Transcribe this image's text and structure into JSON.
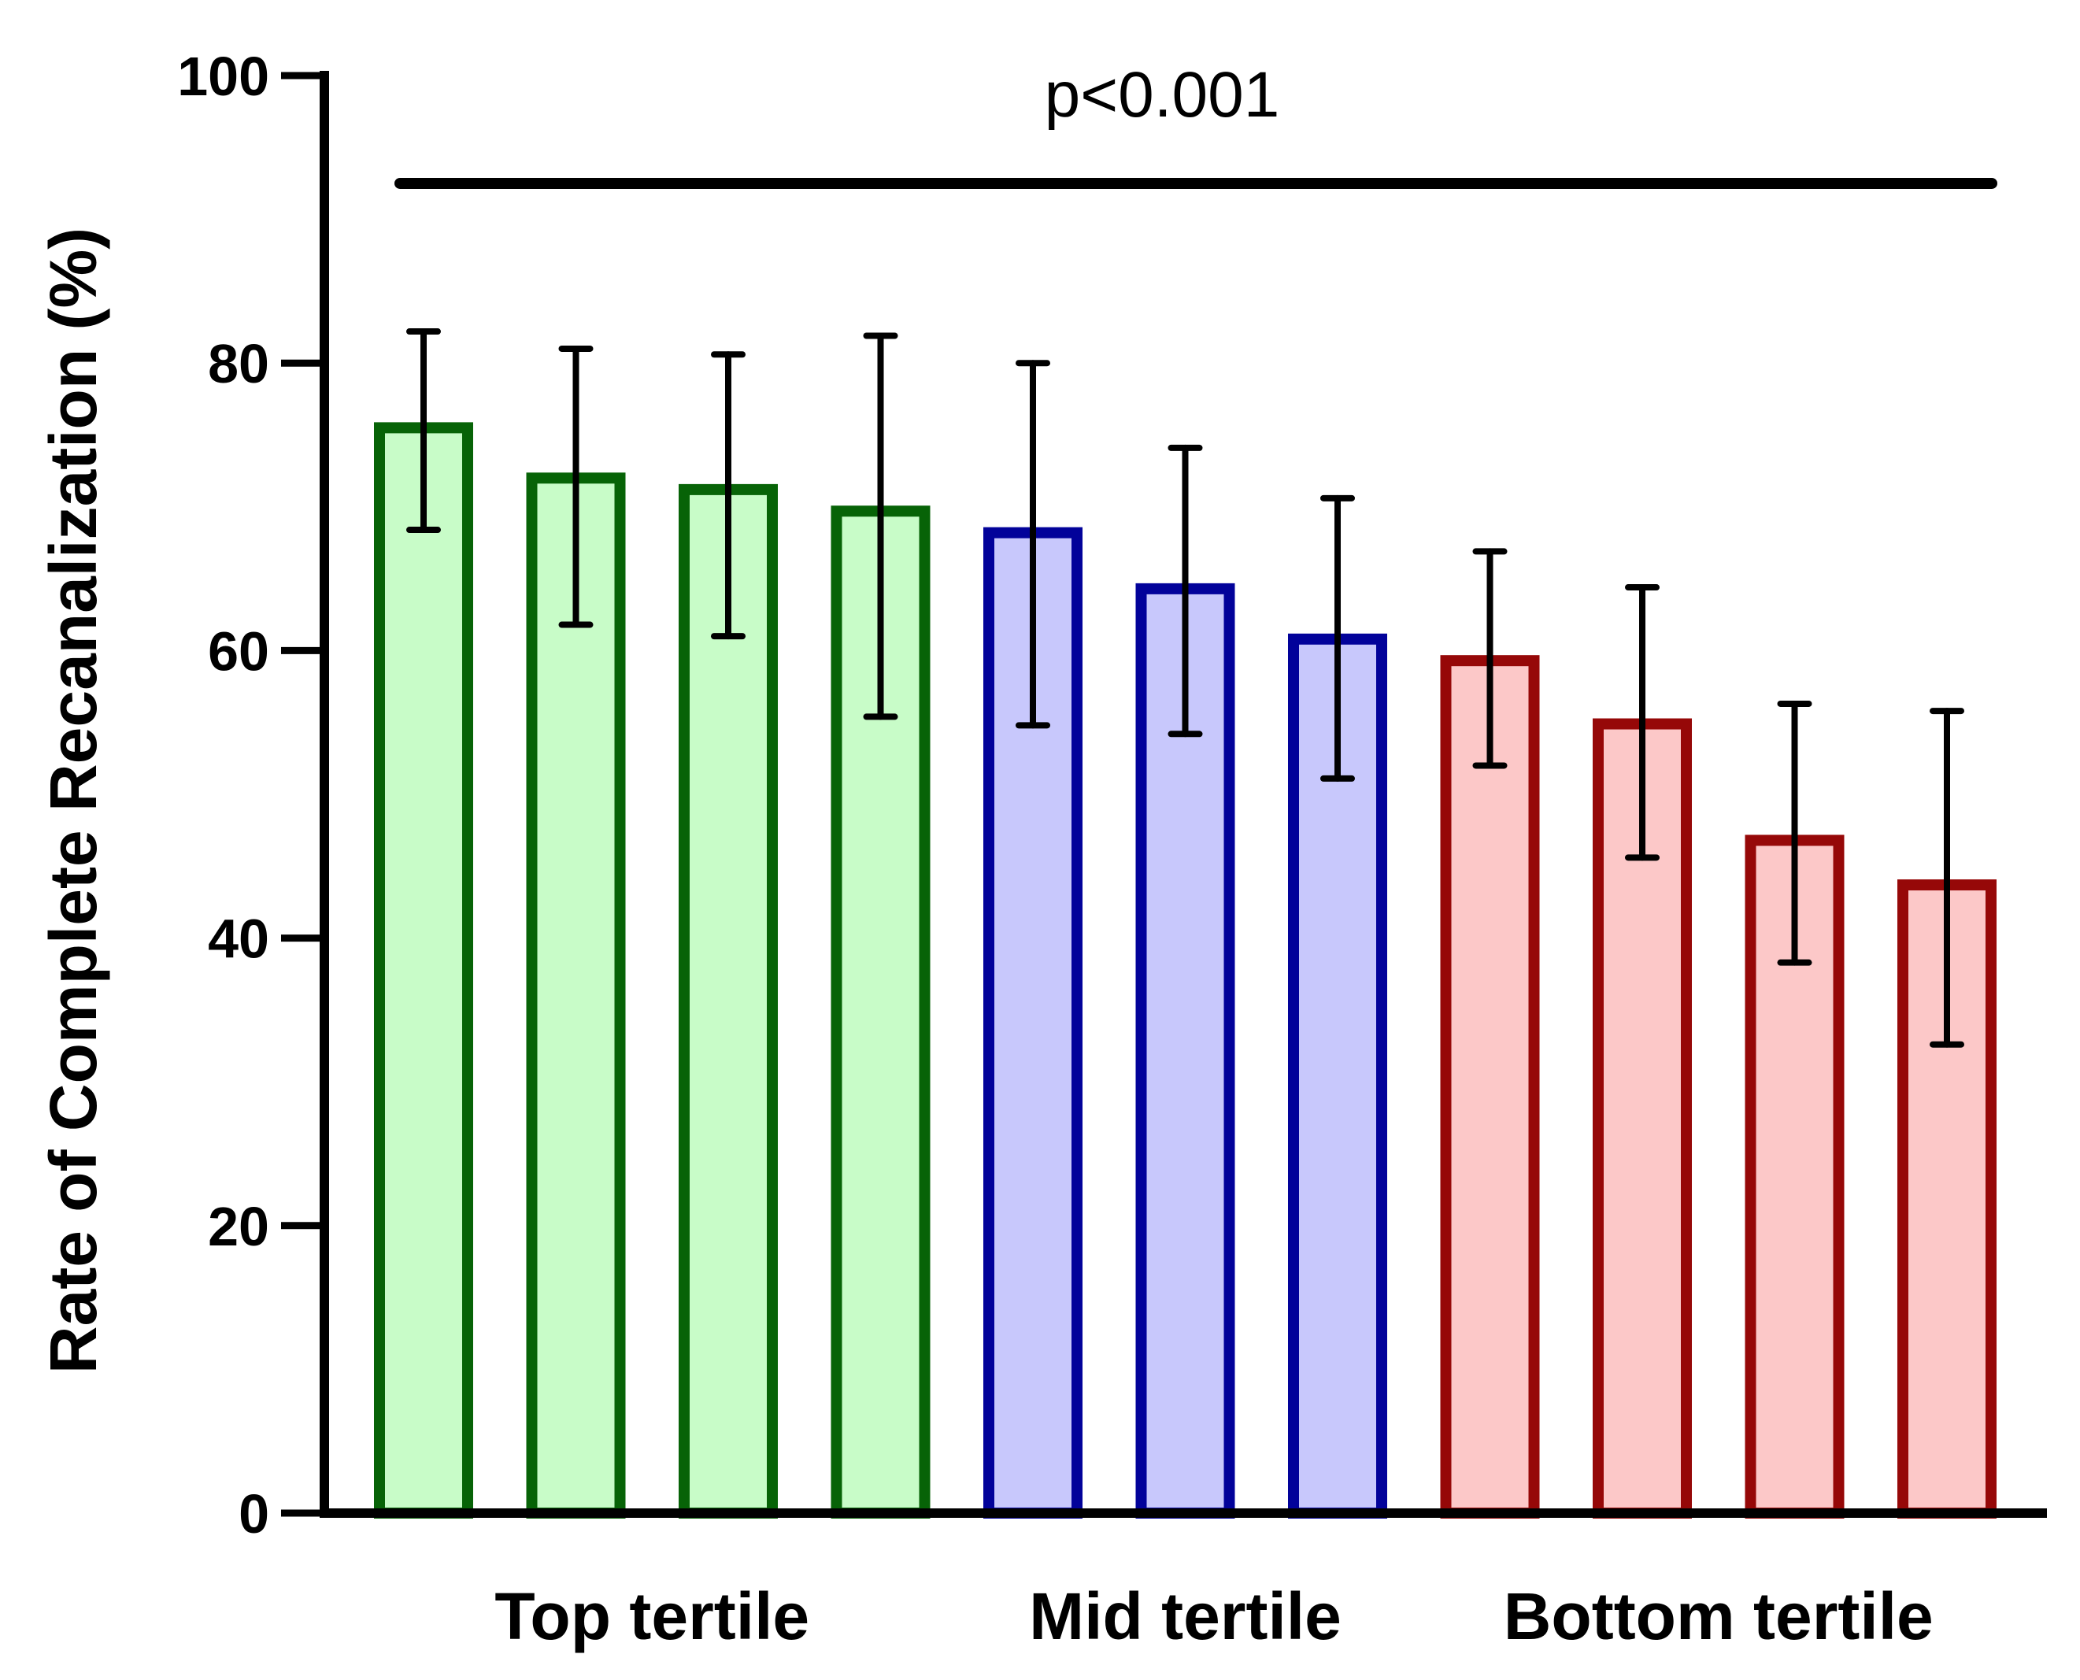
{
  "chart_data": {
    "type": "bar",
    "title": "",
    "ylabel": "Rate of Complete Recanalization (%)",
    "xlabel": "",
    "ylim": [
      0,
      100
    ],
    "yticks": [
      0,
      20,
      40,
      60,
      80,
      100
    ],
    "annotation": "p<0.001",
    "annotation_line": 92.5,
    "groups": [
      {
        "label": "Top tertile",
        "fill": "#c8fcc8",
        "stroke": "#076307",
        "values": [
          75.5,
          72.0,
          71.2,
          69.7
        ],
        "err_low": [
          68.4,
          61.8,
          61.0,
          55.4
        ],
        "err_high": [
          82.2,
          81.0,
          80.6,
          81.9
        ]
      },
      {
        "label": "Mid tertile",
        "fill": "#c8c8fc",
        "stroke": "#02029a",
        "values": [
          68.2,
          64.3,
          60.8
        ],
        "err_low": [
          54.8,
          54.2,
          51.1
        ],
        "err_high": [
          80.0,
          74.1,
          70.6
        ]
      },
      {
        "label": "Bottom tertile",
        "fill": "#fcc8c8",
        "stroke": "#960808",
        "values": [
          59.3,
          54.9,
          46.8,
          43.7
        ],
        "err_low": [
          52.0,
          45.6,
          38.3,
          32.6
        ],
        "err_high": [
          66.9,
          64.4,
          56.3,
          55.8
        ]
      }
    ]
  }
}
